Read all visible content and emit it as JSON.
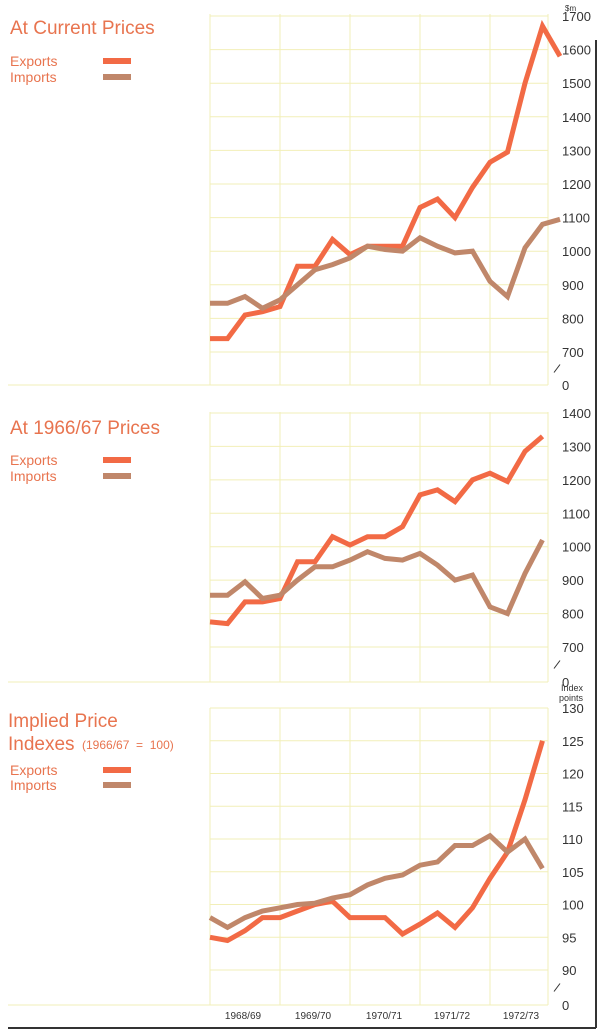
{
  "colors": {
    "exports": "#f26a45",
    "imports": "#c0876a",
    "title": "#e8744f",
    "grid": "#f2efb8",
    "axis_text": "#333333",
    "frame": "#333333"
  },
  "x_axis": {
    "tick_labels": [
      "1968/69",
      "1969/70",
      "1970/71",
      "1971/72",
      "1972/73"
    ]
  },
  "chart_data": [
    {
      "type": "line",
      "title": "At Current Prices",
      "ylabel": "$m",
      "ylim": [
        0,
        1700
      ],
      "yticks": [
        0,
        700,
        800,
        900,
        1000,
        1100,
        1200,
        1300,
        1400,
        1500,
        1600,
        1700
      ],
      "broken_axis": true,
      "x_label_per_quarter": "quarters from 1967/68 Q3 to 1972/73 Q4",
      "series": [
        {
          "name": "Exports",
          "values": [
            740,
            740,
            810,
            820,
            835,
            955,
            955,
            1035,
            990,
            1015,
            1015,
            1015,
            1130,
            1155,
            1100,
            1190,
            1265,
            1295,
            1500,
            1670,
            1580
          ]
        },
        {
          "name": "Imports",
          "values": [
            845,
            845,
            865,
            830,
            855,
            900,
            945,
            960,
            980,
            1015,
            1005,
            1000,
            1040,
            1015,
            995,
            1000,
            910,
            865,
            1010,
            1080,
            1095
          ]
        }
      ]
    },
    {
      "type": "line",
      "title": "At 1966/67 Prices",
      "ylabel": "",
      "ylim": [
        0,
        1400
      ],
      "yticks": [
        0,
        700,
        800,
        900,
        1000,
        1100,
        1200,
        1300,
        1400
      ],
      "broken_axis": true,
      "series": [
        {
          "name": "Exports",
          "values": [
            775,
            770,
            835,
            835,
            845,
            955,
            955,
            1030,
            1005,
            1030,
            1030,
            1060,
            1155,
            1170,
            1135,
            1200,
            1220,
            1195,
            1285,
            1330
          ]
        },
        {
          "name": "Imports",
          "values": [
            855,
            855,
            895,
            845,
            855,
            900,
            940,
            940,
            960,
            985,
            965,
            960,
            980,
            945,
            900,
            915,
            820,
            800,
            920,
            1020
          ]
        }
      ]
    },
    {
      "type": "line",
      "title": "Implied Price Indexes",
      "subtitle": "(1966/67 = 100)",
      "ylabel": "Index points",
      "ylim": [
        0,
        130
      ],
      "yticks": [
        0,
        90,
        95,
        100,
        105,
        110,
        115,
        120,
        125,
        130
      ],
      "broken_axis": true,
      "series": [
        {
          "name": "Exports",
          "values": [
            95,
            94.5,
            96,
            98,
            98,
            99,
            100,
            100.5,
            98,
            98,
            98,
            95.5,
            97,
            98.7,
            96.5,
            99.5,
            104,
            108,
            116,
            125
          ]
        },
        {
          "name": "Imports",
          "values": [
            98,
            96.5,
            98,
            99,
            99.5,
            100,
            100.2,
            101,
            101.5,
            103,
            104,
            104.5,
            106,
            106.5,
            109,
            109,
            110.5,
            108,
            110,
            105.5
          ]
        }
      ]
    }
  ],
  "panels": [
    {
      "title": "At Current Prices",
      "subtitle": "",
      "legend": [
        {
          "label": "Exports"
        },
        {
          "label": "Imports"
        }
      ]
    },
    {
      "title": "At 1966/67 Prices",
      "subtitle": "",
      "legend": [
        {
          "label": "Exports"
        },
        {
          "label": "Imports"
        }
      ]
    },
    {
      "title_line1": "Implied Price",
      "title_line2": "Indexes",
      "subtitle": "(1966/67  =  100)",
      "legend": [
        {
          "label": "Exports"
        },
        {
          "label": "Imports"
        }
      ]
    }
  ]
}
